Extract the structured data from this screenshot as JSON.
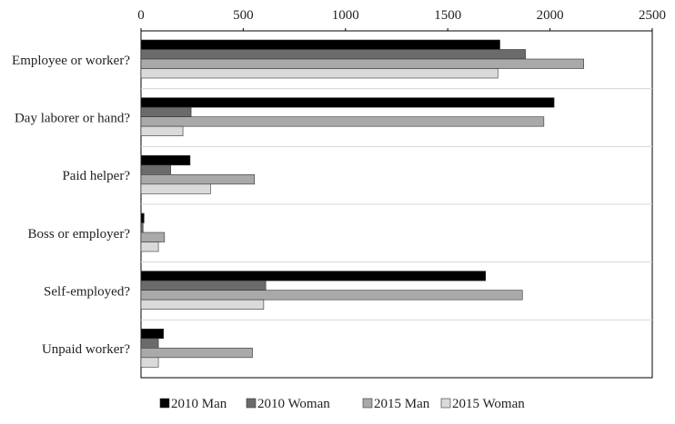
{
  "chart_data": {
    "type": "bar",
    "orientation": "horizontal",
    "title": "",
    "xlabel": "",
    "ylabel": "",
    "xlim": [
      0,
      2500
    ],
    "x_ticks": [
      0,
      500,
      1000,
      1500,
      2000,
      2500
    ],
    "x_axis_position": "top",
    "grid": "horizontal separators between categories",
    "legend_position": "bottom",
    "categories": [
      "Employee or worker?",
      "Day laborer or hand?",
      "Paid helper?",
      "Boss or employer?",
      "Self-employed?",
      "Unpaid worker?"
    ],
    "series": [
      {
        "name": "2010 Man",
        "color": "#000000",
        "values": [
          1755,
          2020,
          240,
          15,
          1685,
          110
        ]
      },
      {
        "name": "2010 Woman",
        "color": "#6b6b6b",
        "values": [
          1880,
          245,
          145,
          10,
          610,
          85
        ]
      },
      {
        "name": "2015 Man",
        "color": "#a9a9a9",
        "values": [
          2165,
          1970,
          555,
          115,
          1865,
          545
        ]
      },
      {
        "name": "2015 Woman",
        "color": "#dadada",
        "values": [
          1745,
          205,
          340,
          85,
          600,
          85
        ]
      }
    ]
  }
}
